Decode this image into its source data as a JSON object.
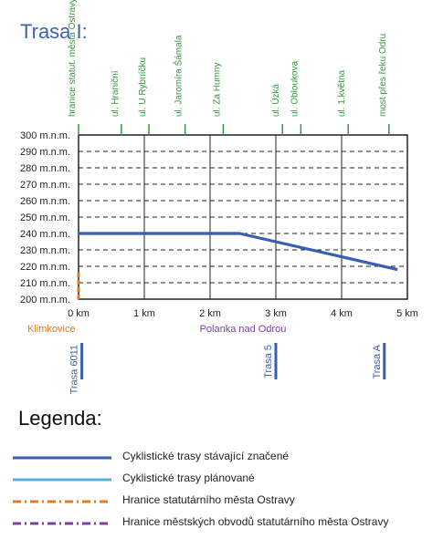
{
  "title": "Trasa I:",
  "chart_data": {
    "type": "line",
    "x": [
      0,
      2.45,
      4.85
    ],
    "series": [
      {
        "values": [
          240,
          240,
          218
        ],
        "color": "#3a5fb0"
      }
    ],
    "xlim": [
      0,
      5
    ],
    "ylim": [
      200,
      300
    ],
    "xticks": [
      0,
      1,
      2,
      3,
      4,
      5
    ],
    "xtick_labels": [
      "0 km",
      "1 km",
      "2 km",
      "3 km",
      "4 km",
      "5 km"
    ],
    "yticks": [
      200,
      210,
      220,
      230,
      240,
      250,
      260,
      270,
      280,
      290,
      300
    ],
    "ytick_labels": [
      "200 m.n.m.",
      "210 m.n.m.",
      "220 m.n.m.",
      "230 m.n.m.",
      "240 m.n.m.",
      "250 m.n.m.",
      "260 m.n.m.",
      "270 m.n.m.",
      "280 m.n.m.",
      "290 m.n.m.",
      "300 m.n.m."
    ],
    "grid": true,
    "streets": [
      {
        "x": 0.0,
        "label": "hranice statut. města Ostravy"
      },
      {
        "x": 0.65,
        "label": "ul. Hraniční"
      },
      {
        "x": 1.07,
        "label": "ul. U Rybníčku"
      },
      {
        "x": 1.62,
        "label": "ul. Jaromíra Šámala"
      },
      {
        "x": 2.2,
        "label": "ul. Za Humny"
      },
      {
        "x": 3.1,
        "label": "ul. Úzká"
      },
      {
        "x": 3.38,
        "label": "ul. Obloukova"
      },
      {
        "x": 4.1,
        "label": "ul. 1.května"
      },
      {
        "x": 4.72,
        "label": "most přes řeku Odru"
      }
    ],
    "areas": [
      {
        "label": "Klimkovice",
        "color": "#e07b1f"
      },
      {
        "label": "Polanka nad Odrou",
        "color": "#7a3fa0"
      }
    ],
    "area_boundary_y": [
      200,
      216
    ],
    "connections": [
      {
        "x": 0.05,
        "label": "Trasa 6011"
      },
      {
        "x": 3.0,
        "label": "Trasa 5"
      },
      {
        "x": 4.65,
        "label": "Trasa A"
      }
    ]
  },
  "legend": {
    "title": "Legenda:",
    "items": [
      {
        "label": "Cyklistické trasy stávající značené",
        "color": "#3a5fb0",
        "style": "solid"
      },
      {
        "label": "Cyklistické trasy plánované",
        "color": "#5aaad8",
        "style": "solid"
      },
      {
        "label": "Hranice statutárního města Ostravy",
        "color": "#e07b1f",
        "style": "dashdot"
      },
      {
        "label": "Hranice městských obvodů statutárního města Ostravy",
        "color": "#7a3fa0",
        "style": "dashdot"
      }
    ]
  }
}
